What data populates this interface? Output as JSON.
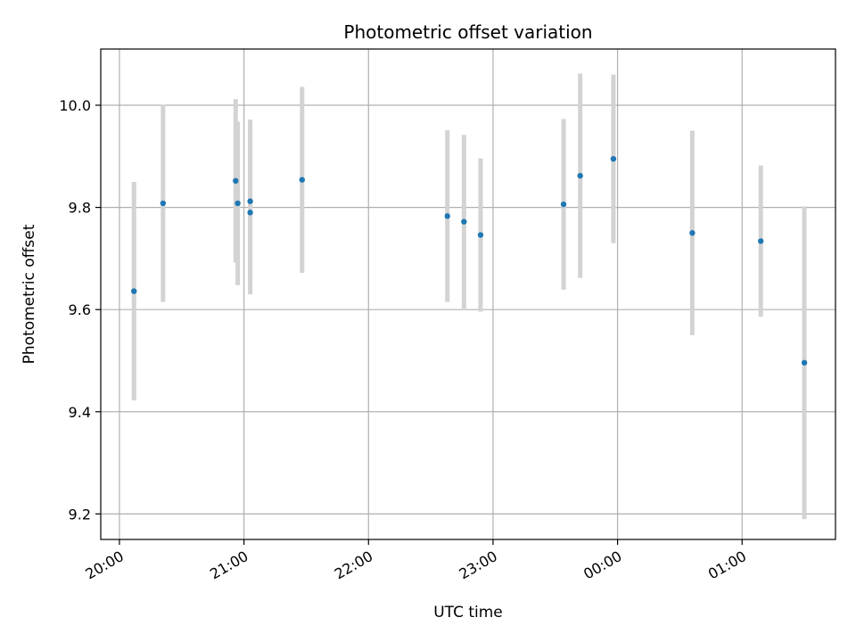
{
  "chart_data": {
    "type": "scatter",
    "title": "Photometric offset variation",
    "xlabel": "UTC time",
    "ylabel": "Photometric offset",
    "grid": true,
    "x_tick_labels": [
      "20:00",
      "21:00",
      "22:00",
      "23:00",
      "00:00",
      "01:00"
    ],
    "y_tick_labels": [
      "9.2",
      "9.4",
      "9.6",
      "9.8",
      "10.0"
    ],
    "x_ticks_hours": [
      0,
      1,
      2,
      3,
      4,
      5
    ],
    "y_ticks": [
      9.2,
      9.4,
      9.6,
      9.8,
      10.0
    ],
    "xlim_hours_after_20_00": [
      -0.15,
      5.75
    ],
    "ylim": [
      9.15,
      10.11
    ],
    "point_color": "#1f77b4",
    "errorbar_color": "#d3d3d3",
    "points": [
      {
        "t": "20:07",
        "y": 9.636,
        "err": 0.214
      },
      {
        "t": "20:21",
        "y": 9.808,
        "err": 0.193
      },
      {
        "t": "20:56",
        "y": 9.852,
        "err": 0.16
      },
      {
        "t": "20:57",
        "y": 9.808,
        "err": 0.16
      },
      {
        "t": "21:03",
        "y": 9.812,
        "err": 0.16
      },
      {
        "t": "21:03",
        "y": 9.79,
        "err": 0.16
      },
      {
        "t": "21:28",
        "y": 9.854,
        "err": 0.182
      },
      {
        "t": "22:38",
        "y": 9.783,
        "err": 0.168
      },
      {
        "t": "22:46",
        "y": 9.772,
        "err": 0.17
      },
      {
        "t": "22:54",
        "y": 9.746,
        "err": 0.15
      },
      {
        "t": "23:34",
        "y": 9.806,
        "err": 0.167
      },
      {
        "t": "23:42",
        "y": 9.862,
        "err": 0.2
      },
      {
        "t": "23:58",
        "y": 9.895,
        "err": 0.165
      },
      {
        "t": "00:36",
        "y": 9.75,
        "err": 0.2
      },
      {
        "t": "01:09",
        "y": 9.734,
        "err": 0.148
      },
      {
        "t": "01:30",
        "y": 9.496,
        "err": 0.306
      }
    ]
  }
}
